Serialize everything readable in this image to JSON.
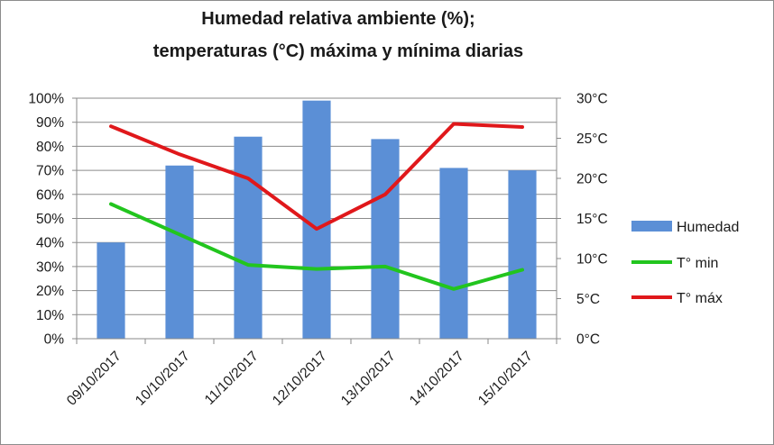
{
  "chart_data": {
    "type": "bar",
    "title_lines": [
      "Humedad relativa ambiente (%);",
      "temperaturas (°C) máxima y mínima diarias"
    ],
    "categories": [
      "09/10/2017",
      "10/10/2017",
      "11/10/2017",
      "12/10/2017",
      "13/10/2017",
      "14/10/2017",
      "15/10/2017"
    ],
    "y_left": {
      "ylim": [
        0,
        100
      ],
      "step": 10,
      "unit": "%",
      "ticks": [
        "0%",
        "10%",
        "20%",
        "30%",
        "40%",
        "50%",
        "60%",
        "70%",
        "80%",
        "90%",
        "100%"
      ]
    },
    "y_right": {
      "ylim": [
        0,
        30
      ],
      "step": 5,
      "unit": "°C",
      "ticks": [
        "0°C",
        "5°C",
        "10°C",
        "15°C",
        "20°C",
        "25°C",
        "30°C"
      ]
    },
    "grid": true,
    "legend_position": "right",
    "series": [
      {
        "name": "Humedad",
        "type": "bar",
        "axis": "left",
        "color": "#5b8fd6",
        "values": [
          40,
          72,
          84,
          99,
          83,
          71,
          70
        ]
      },
      {
        "name": "T° min",
        "type": "line",
        "axis": "right",
        "color": "#22c51e",
        "values": [
          16.8,
          13.0,
          9.2,
          8.7,
          9.0,
          6.2,
          8.6
        ]
      },
      {
        "name": "T° máx",
        "type": "line",
        "axis": "right",
        "color": "#e0181b",
        "values": [
          26.5,
          23.0,
          20.0,
          13.7,
          18.0,
          26.8,
          26.4
        ]
      }
    ]
  }
}
